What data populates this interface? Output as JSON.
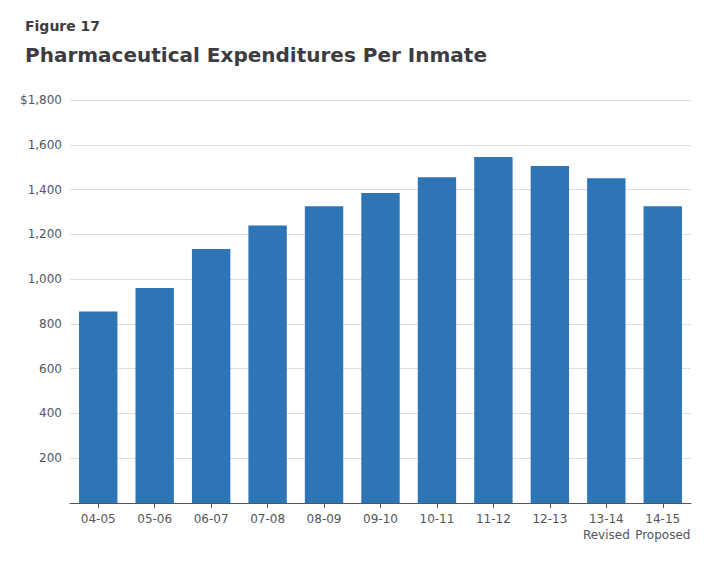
{
  "chart_data": {
    "type": "bar",
    "subtitle": "Figure 17",
    "title": "Pharmaceutical Expenditures Per Inmate",
    "categories": [
      "04-05",
      "05-06",
      "06-07",
      "07-08",
      "08-09",
      "09-10",
      "10-11",
      "11-12",
      "12-13",
      "13-14",
      "14-15"
    ],
    "values": [
      855,
      960,
      1135,
      1240,
      1325,
      1385,
      1455,
      1545,
      1505,
      1450,
      1325
    ],
    "color": "#2E75B6",
    "ylim": [
      0,
      1800
    ],
    "yticks": [
      200,
      400,
      600,
      800,
      {
        "value": 1000,
        "label": "1,000"
      },
      {
        "value": 1200,
        "label": "1,200"
      },
      {
        "value": 1400,
        "label": "1,400"
      },
      {
        "value": 1600,
        "label": "1,600"
      },
      {
        "value": 1800,
        "label": "$1,800"
      }
    ],
    "annotations": [
      {
        "category": "13-14",
        "text": "Revised"
      },
      {
        "category": "14-15",
        "text": "Proposed"
      }
    ],
    "grid": true
  }
}
